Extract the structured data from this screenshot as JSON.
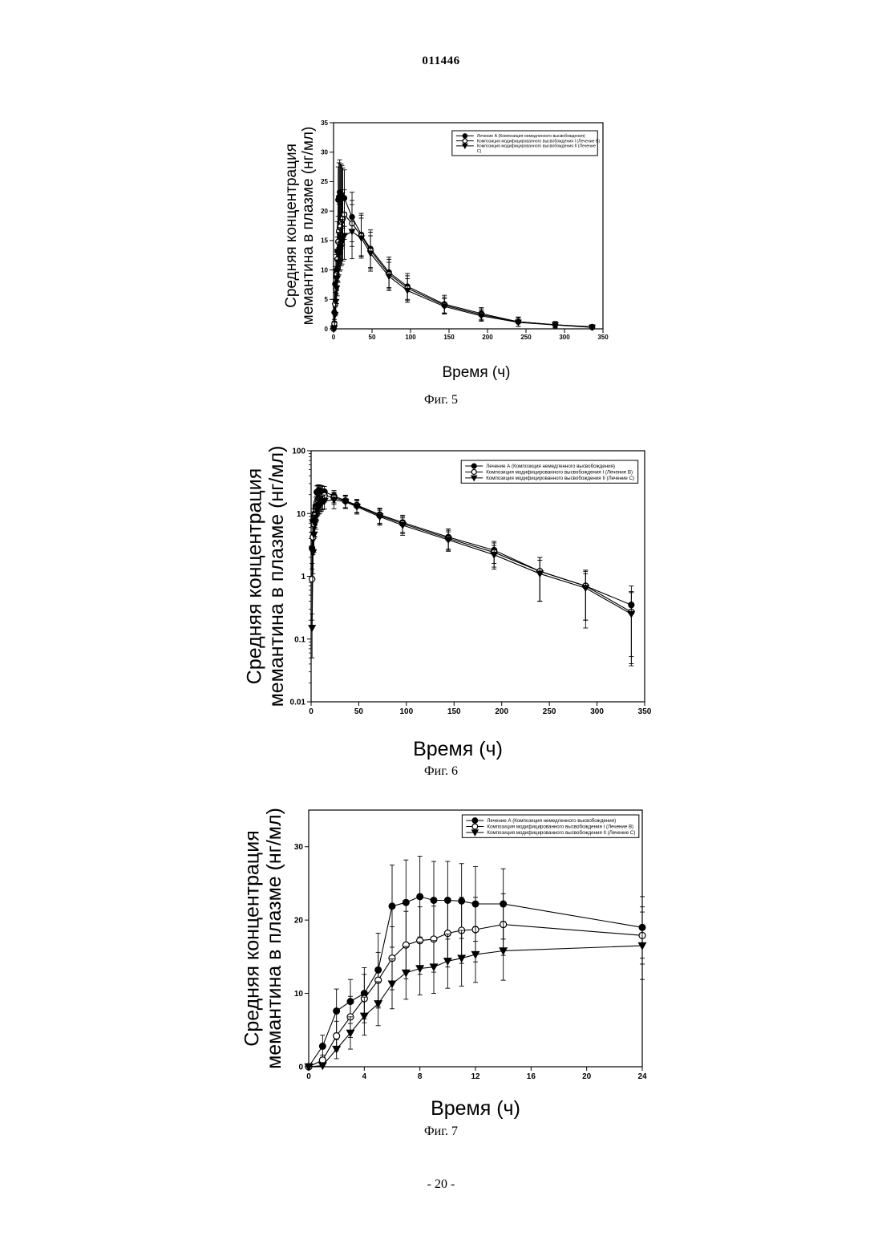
{
  "header": {
    "doc_number": "011446"
  },
  "footer": {
    "page_number": "- 20 -"
  },
  "legend_labels": [
    "Лечение А (Композиция немедленного высвобождения)",
    "Композиция модифицированного высвобождения I (Лечение В)",
    "Композиция модифицированного высвобождения II (Лечение С)"
  ],
  "chart_data": [
    {
      "type": "line",
      "caption": "Фиг. 5",
      "xlabel": "Время (ч)",
      "ylabel": "Средняя концентрация мемантина в плазме (нг/мл)",
      "xscale": "linear",
      "yscale": "linear",
      "xlim": [
        0,
        350
      ],
      "ylim": [
        0,
        35
      ],
      "xticks": [
        0,
        50,
        100,
        150,
        200,
        250,
        300,
        350
      ],
      "yticks": [
        0,
        5,
        10,
        15,
        20,
        25,
        30,
        35
      ],
      "legend_position": "top-right",
      "error_bars": true,
      "series": [
        {
          "name": "Лечение А (Композиция немедленного высвобождения)",
          "marker": "filled-circle",
          "x": [
            0,
            1,
            2,
            3,
            4,
            5,
            6,
            7,
            8,
            9,
            10,
            11,
            12,
            14,
            24,
            36,
            48,
            72,
            96,
            144,
            192,
            240,
            288,
            336
          ],
          "y": [
            0,
            2.8,
            7.6,
            8.9,
            10.0,
            13.2,
            21.9,
            22.4,
            23.2,
            22.7,
            22.7,
            22.6,
            22.2,
            22.2,
            19.0,
            16.0,
            13.6,
            9.6,
            7.2,
            4.2,
            2.6,
            1.2,
            0.7,
            0.35
          ],
          "sd": [
            0,
            1.5,
            3.0,
            3.0,
            3.5,
            5.0,
            5.6,
            5.8,
            5.5,
            5.3,
            5.3,
            5.1,
            5.1,
            4.8,
            4.2,
            3.6,
            3.2,
            2.6,
            2.2,
            1.5,
            1.0,
            0.8,
            0.55,
            0.35
          ]
        },
        {
          "name": "Композиция модифицированного высвобождения I (Лечение В)",
          "marker": "open-circle",
          "x": [
            0,
            1,
            2,
            3,
            4,
            5,
            6,
            7,
            8,
            9,
            10,
            11,
            12,
            14,
            24,
            36,
            48,
            72,
            96,
            144,
            192,
            240,
            288,
            336
          ],
          "y": [
            0,
            0.9,
            4.2,
            6.8,
            9.3,
            11.8,
            14.8,
            16.6,
            17.2,
            17.4,
            18.2,
            18.6,
            18.7,
            19.4,
            17.9,
            15.8,
            13.3,
            9.3,
            6.9,
            4.0,
            2.4,
            1.2,
            0.7,
            0.27
          ],
          "sd": [
            0,
            0.7,
            2.0,
            2.8,
            3.3,
            3.8,
            4.3,
            4.6,
            4.6,
            4.5,
            4.6,
            4.5,
            4.4,
            4.2,
            3.9,
            3.5,
            3.1,
            2.5,
            2.1,
            1.4,
            1.0,
            0.8,
            0.5,
            0.3
          ]
        },
        {
          "name": "Композиция модифицированного высвобождения II (Лечение С)",
          "marker": "filled-triangle-down",
          "x": [
            0,
            1,
            2,
            3,
            4,
            5,
            6,
            7,
            8,
            9,
            10,
            11,
            12,
            14,
            24,
            36,
            48,
            72,
            96,
            144,
            192,
            240,
            288,
            336
          ],
          "y": [
            0,
            0.15,
            2.4,
            4.6,
            6.9,
            8.6,
            11.3,
            12.8,
            13.4,
            13.6,
            14.4,
            14.8,
            15.3,
            15.8,
            16.5,
            15.4,
            12.8,
            8.9,
            6.5,
            3.8,
            2.2,
            1.1,
            0.65,
            0.25
          ],
          "sd": [
            0,
            0.1,
            1.3,
            2.2,
            2.6,
            3.0,
            3.4,
            3.6,
            3.6,
            3.6,
            3.7,
            3.8,
            3.8,
            4.0,
            4.6,
            3.4,
            3.0,
            2.4,
            2.0,
            1.3,
            0.9,
            0.7,
            0.45,
            0.3
          ]
        }
      ]
    },
    {
      "type": "line",
      "caption": "Фиг. 6",
      "xlabel": "Время (ч)",
      "ylabel": "Средняя концентрация мемантина в плазме (нг/мл)",
      "xscale": "linear",
      "yscale": "log",
      "xlim": [
        0,
        350
      ],
      "ylim": [
        0.01,
        100
      ],
      "xticks": [
        0,
        50,
        100,
        150,
        200,
        250,
        300,
        350
      ],
      "yticks": [
        0.01,
        0.1,
        1,
        10,
        100
      ],
      "ytick_labels": [
        "0.01",
        "0.1",
        "1",
        "10",
        "100"
      ],
      "legend_position": "top-right",
      "error_bars": true,
      "series_ref": "same as Фиг. 5"
    },
    {
      "type": "line",
      "caption": "Фиг. 7",
      "xlabel": "Время (ч)",
      "ylabel": "Средняя концентрация мемантина в плазме (нг/мл)",
      "xscale": "linear",
      "yscale": "linear",
      "xlim": [
        0,
        24
      ],
      "ylim": [
        0,
        35
      ],
      "xticks": [
        0,
        4,
        8,
        12,
        16,
        20,
        24
      ],
      "yticks": [
        0,
        10,
        20,
        30
      ],
      "legend_position": "top-right",
      "error_bars": true,
      "series_ref": "same as Фиг. 5, first 24 h"
    }
  ]
}
